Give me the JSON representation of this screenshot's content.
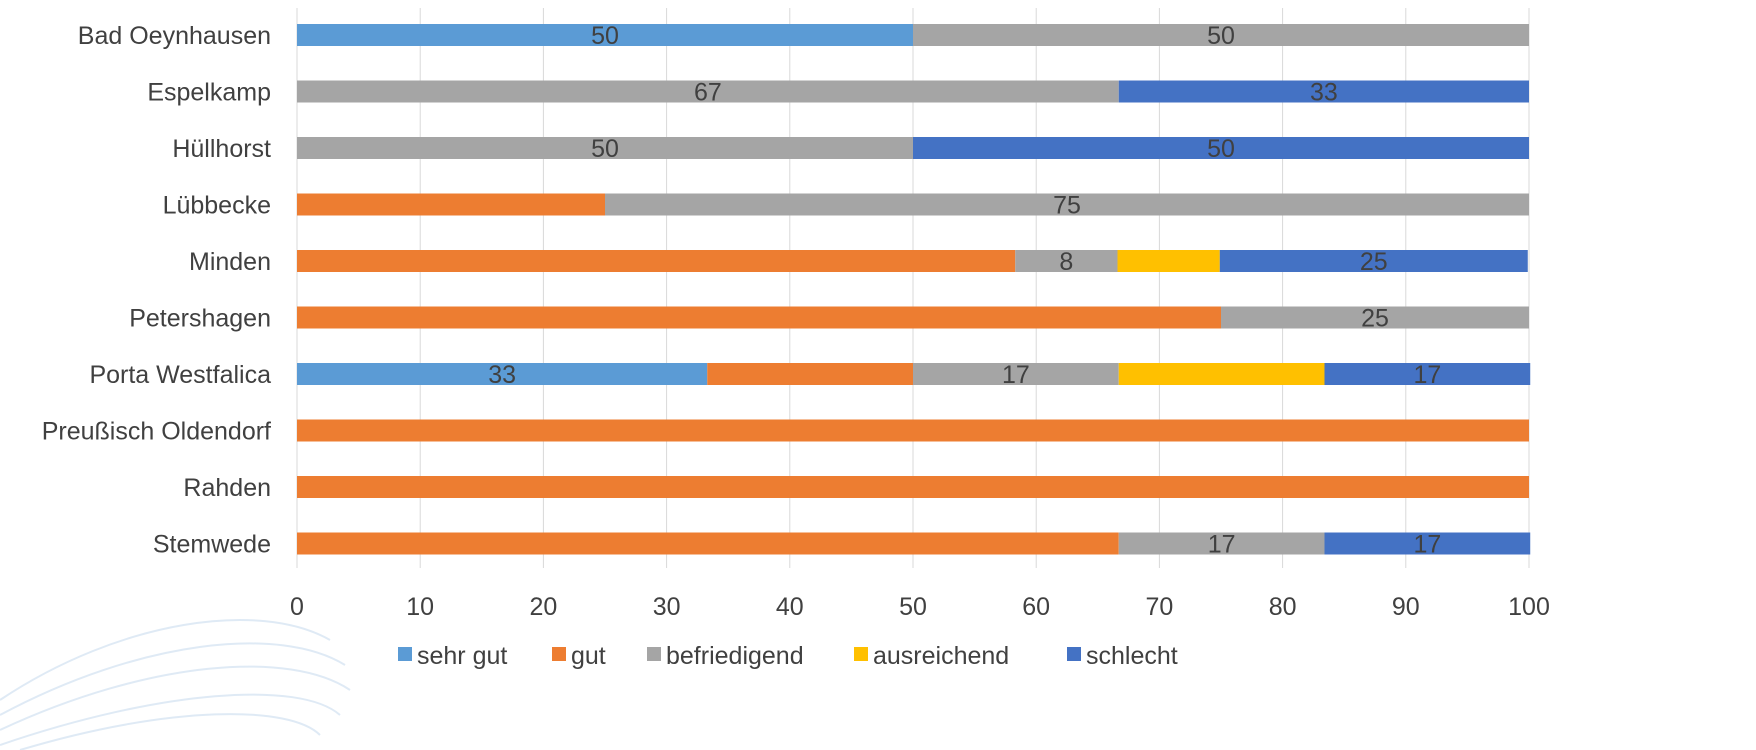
{
  "chart_data": {
    "type": "bar",
    "orientation": "horizontal",
    "stacked": true,
    "categories": [
      "Bad Oeynhausen",
      "Espelkamp",
      "Hüllhorst",
      "Lübbecke",
      "Minden",
      "Petershagen",
      "Porta Westfalica",
      "Preußisch Oldendorf",
      "Rahden",
      "Stemwede"
    ],
    "series": [
      {
        "name": "sehr gut",
        "color": "#5b9bd5",
        "values": [
          50,
          0,
          0,
          0,
          0,
          0,
          33.3,
          0,
          0,
          0
        ]
      },
      {
        "name": "gut",
        "color": "#ed7d31",
        "values": [
          0,
          0,
          0,
          25,
          58.3,
          75,
          16.7,
          100,
          100,
          66.7
        ]
      },
      {
        "name": "befriedigend",
        "color": "#a5a5a5",
        "values": [
          50,
          66.7,
          50,
          75,
          8.3,
          25,
          16.7,
          0,
          0,
          16.7
        ]
      },
      {
        "name": "ausreichend",
        "color": "#ffc000",
        "values": [
          0,
          0,
          0,
          0,
          8.3,
          0,
          16.7,
          0,
          0,
          0
        ]
      },
      {
        "name": "schlecht",
        "color": "#4472c4",
        "values": [
          0,
          33.3,
          50,
          0,
          25,
          0,
          16.7,
          0,
          0,
          16.7
        ]
      }
    ],
    "data_labels": [
      [
        "50",
        "",
        "50",
        "",
        ""
      ],
      [
        "",
        "",
        "67",
        "",
        "33"
      ],
      [
        "",
        "",
        "50",
        "",
        "50"
      ],
      [
        "",
        "",
        "75",
        "",
        ""
      ],
      [
        "",
        "",
        "8",
        "",
        "25"
      ],
      [
        "",
        "",
        "25",
        "",
        ""
      ],
      [
        "33",
        "",
        "17",
        "",
        "17"
      ],
      [
        "",
        "",
        "",
        "",
        ""
      ],
      [
        "",
        "",
        "",
        "",
        ""
      ],
      [
        "",
        "",
        "17",
        "",
        "17"
      ]
    ],
    "xlim": [
      0,
      100
    ],
    "xticks": [
      "0",
      "10",
      "20",
      "30",
      "40",
      "50",
      "60",
      "70",
      "80",
      "90",
      "100"
    ],
    "grid": true,
    "legend_position": "bottom"
  }
}
